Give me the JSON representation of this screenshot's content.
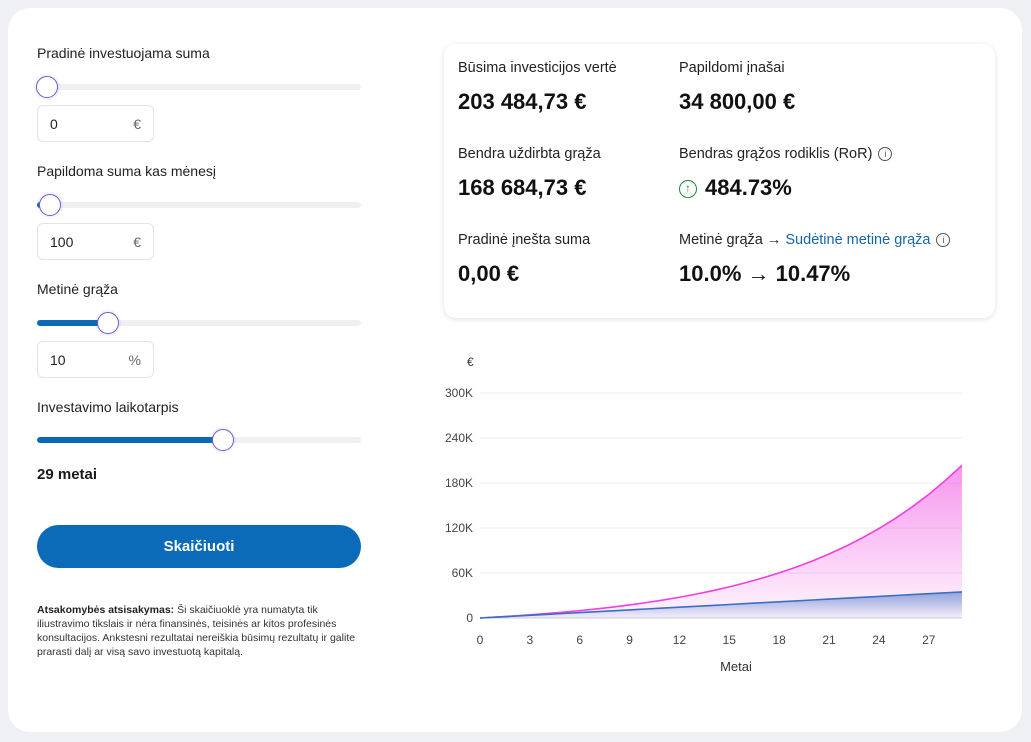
{
  "inputs": {
    "initial": {
      "label": "Pradinė investuojama suma",
      "value": "0",
      "unit": "€",
      "slider_fraction": 0.03
    },
    "monthly": {
      "label": "Papildoma suma kas mėnesį",
      "value": "100",
      "unit": "€",
      "slider_fraction": 0.04
    },
    "annual_return": {
      "label": "Metinė grąža",
      "value": "10",
      "unit": "%",
      "slider_fraction": 0.22
    },
    "period": {
      "label": "Investavimo laikotarpis",
      "value_text": "29 metai",
      "slider_fraction": 0.575
    }
  },
  "calculate_label": "Skaičiuoti",
  "disclaimer": {
    "title": "Atsakomybės atsisakymas:",
    "text": "Ši skaičiuoklė yra numatyta tik iliustravimo tikslais ir nėra finansinės, teisinės ar kitos profesinės konsultacijos. Ankstesni rezultatai nereiškia būsimų rezultatų ir galite prarasti dalį ar visą savo investuotą kapitalą."
  },
  "results": {
    "future_value": {
      "label": "Būsima investicijos vertė",
      "value": "203 484,73 €"
    },
    "contributions": {
      "label": "Papildomi įnašai",
      "value": "34 800,00 €"
    },
    "total_return": {
      "label": "Bendra uždirbta grąža",
      "value": "168 684,73 €"
    },
    "ror": {
      "label": "Bendras grąžos rodiklis (RoR)",
      "value": "484.73%"
    },
    "initial_deposit": {
      "label": "Pradinė įnešta suma",
      "value": "0,00 €"
    },
    "annual_vs_compound": {
      "label_prefix": "Metinė grąža →",
      "label_link": "Sudėtinė metinė grąža",
      "value": "10.0% → 10.47%"
    }
  },
  "chart_data": {
    "type": "area",
    "ylabel": "€",
    "xlabel": "Metai",
    "y_ticks": [
      "300K",
      "240K",
      "180K",
      "120K",
      "60K",
      "0"
    ],
    "y_tick_values": [
      300000,
      240000,
      180000,
      120000,
      60000,
      0
    ],
    "x_ticks": [
      0,
      3,
      6,
      9,
      12,
      15,
      18,
      21,
      24,
      27
    ],
    "ylim": [
      0,
      300000
    ],
    "xlim": [
      0,
      29
    ],
    "grid": true,
    "series": [
      {
        "color": "#ef3fe0",
        "values": [
          0,
          1257,
          2646,
          4181,
          5877,
          7751,
          9821,
          12108,
          14634,
          17425,
          20509,
          23916,
          27680,
          31838,
          36432,
          41507,
          47114,
          53308,
          60151,
          67711,
          76062,
          85288,
          95481,
          106741,
          119181,
          132924,
          148106,
          164878,
          183407,
          203485
        ]
      },
      {
        "color": "#3a6fc4",
        "values": [
          0,
          1200,
          2400,
          3600,
          4800,
          6000,
          7200,
          8400,
          9600,
          10800,
          12000,
          13200,
          14400,
          15600,
          16800,
          18000,
          19200,
          20400,
          21600,
          22800,
          24000,
          25200,
          26400,
          27600,
          28800,
          30000,
          31200,
          32400,
          33600,
          34800
        ]
      }
    ]
  },
  "icons": {
    "info": "info-icon",
    "up": "arrow-up-circle-icon"
  }
}
